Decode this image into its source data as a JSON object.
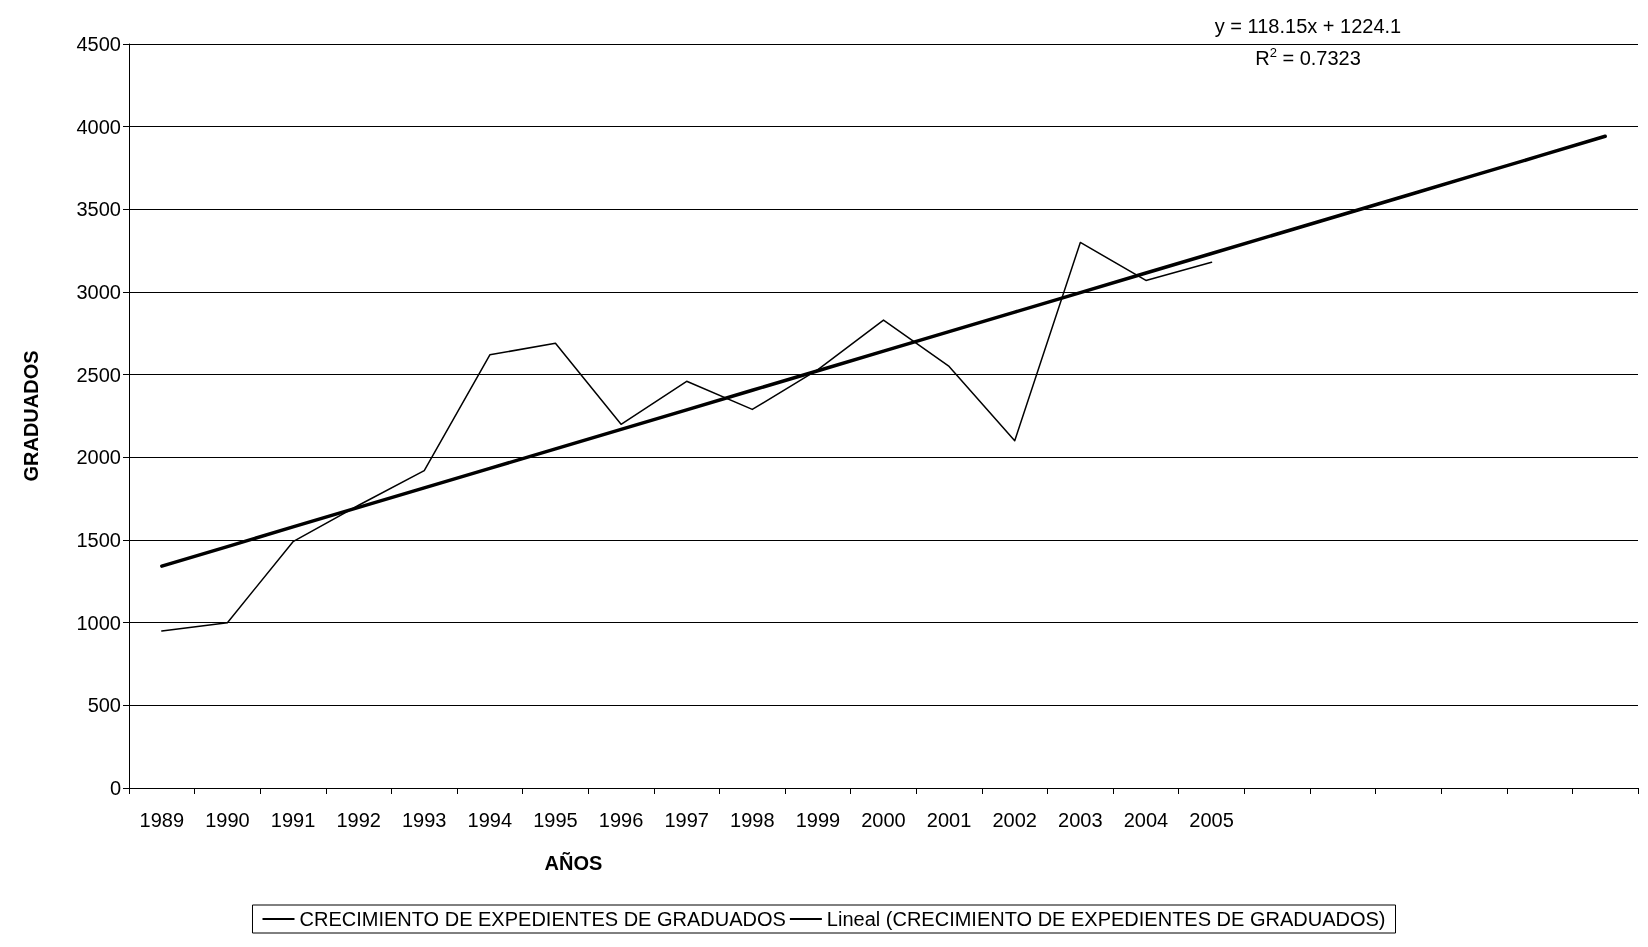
{
  "chart_data": {
    "type": "line",
    "xlabel": "AÑOS",
    "ylabel": "GRADUADOS",
    "categories": [
      "1989",
      "1990",
      "1991",
      "1992",
      "1993",
      "1994",
      "1995",
      "1996",
      "1997",
      "1998",
      "1999",
      "2000",
      "2001",
      "2002",
      "2003",
      "2004",
      "2005",
      null,
      null,
      null,
      null,
      null,
      null
    ],
    "series": [
      {
        "name": "CRECIMIENTO DE EXPEDIENTES DE GRADUADOS",
        "color": "#000000",
        "values": [
          950,
          1000,
          1490,
          1710,
          1920,
          2620,
          2690,
          2200,
          2460,
          2290,
          2530,
          2830,
          2550,
          2100,
          3300,
          3070,
          3180,
          null,
          null,
          null,
          null,
          null,
          null
        ]
      },
      {
        "name": "Lineal (CRECIMIENTO DE EXPEDIENTES DE GRADUADOS)",
        "color": "#000000",
        "values": [
          1342,
          1460,
          1579,
          1697,
          1815,
          1933,
          2051,
          2169,
          2287,
          2406,
          2524,
          2642,
          2760,
          2878,
          2996,
          3115,
          3233,
          3351,
          3469,
          3587,
          3705,
          3823,
          3942
        ]
      }
    ],
    "ylim": [
      0,
      4500
    ],
    "yticks": [
      0,
      500,
      1000,
      1500,
      2000,
      2500,
      3000,
      3500,
      4000,
      4500
    ],
    "grid": "y",
    "legend": "bottom",
    "marker": "none",
    "line_style": "solid",
    "annotations": [
      "y = 118.15x + 1224.1",
      "R$^{2}$ = 0.7323"
    ]
  }
}
